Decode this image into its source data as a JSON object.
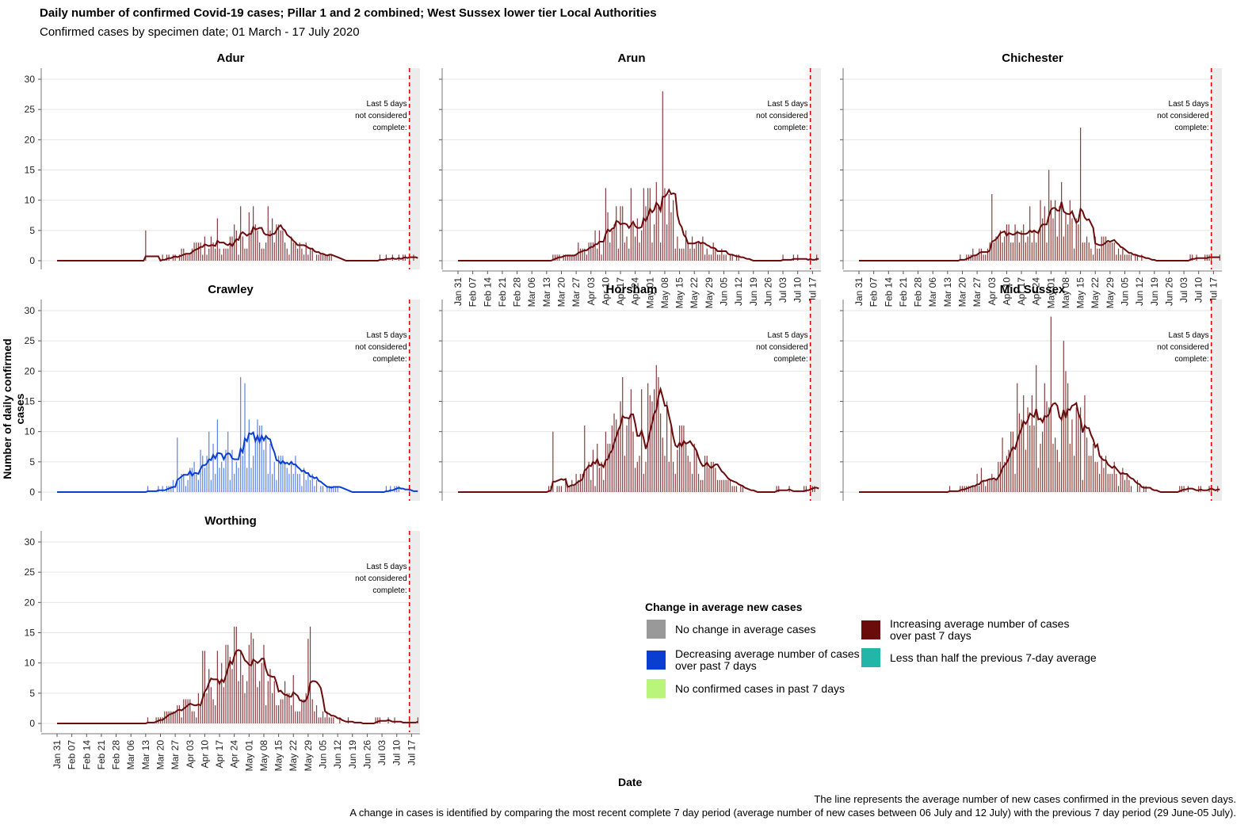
{
  "title": "Daily number of confirmed Covid-19 cases; Pillar 1 and 2 combined; West Sussex lower tier Local Authorities",
  "subtitle": "Confirmed cases by specimen date; 01 March - 17 July 2020",
  "ylabel": "Number of daily confirmed cases",
  "xlabel": "Date",
  "footnote_line1": "The line represents the average number of new cases confirmed in the previous seven days.",
  "footnote_line2": "A change in cases is identified by comparing the most recent complete 7 day period (average number of new cases between 06 July and 12 July) with the previous 7 day period (29 June-05 July).",
  "legend": {
    "title": "Change in average new cases",
    "items": [
      {
        "label": "No change in average cases",
        "color": "#999999"
      },
      {
        "label": "Decreasing average number of cases over past 7 days",
        "color": "#0a3ed1"
      },
      {
        "label": "No confirmed cases in past 7 days",
        "color": "#b8f57a"
      },
      {
        "label": "Increasing average number of cases over past 7 days",
        "color": "#6b0b0b"
      },
      {
        "label": "Less than half the previous 7-day average",
        "color": "#22b5a8"
      }
    ]
  },
  "chart_data": {
    "type": "bar",
    "ylim": [
      0,
      30
    ],
    "yticks": [
      0,
      5,
      10,
      15,
      20,
      25,
      30
    ],
    "xticks": [
      "Jan 31",
      "Feb 07",
      "Feb 14",
      "Feb 21",
      "Feb 28",
      "Mar 06",
      "Mar 13",
      "Mar 20",
      "Mar 27",
      "Apr 03",
      "Apr 10",
      "Apr 17",
      "Apr 24",
      "May 01",
      "May 08",
      "May 15",
      "May 22",
      "May 29",
      "Jun 05",
      "Jun 12",
      "Jun 19",
      "Jun 26",
      "Jul 03",
      "Jul 10",
      "Jul 17"
    ],
    "incomplete_note": "Last 5 days|not considered|complete:",
    "panels": [
      {
        "name": "Adur",
        "status_color": "#6b0b0b",
        "peak": 5,
        "spikes": [
          [
            -14,
            7
          ],
          [
            3,
            9
          ],
          [
            10,
            9
          ],
          [
            -48,
            5
          ],
          [
            -6,
            6
          ]
        ]
      },
      {
        "name": "Arun",
        "status_color": "#6b0b0b",
        "peak": 8,
        "spikes": [
          [
            7,
            28
          ],
          [
            -20,
            12
          ],
          [
            -8,
            12
          ],
          [
            12,
            10
          ],
          [
            -2,
            12
          ]
        ]
      },
      {
        "name": "Chichester",
        "status_color": "#6b0b0b",
        "peak": 6.5,
        "spikes": [
          [
            0,
            15
          ],
          [
            6,
            13
          ],
          [
            15,
            22
          ],
          [
            -27,
            11
          ],
          [
            -4,
            10
          ]
        ]
      },
      {
        "name": "Crawley",
        "status_color": "#0a3ed1",
        "peak": 8,
        "spikes": [
          [
            -3,
            19
          ],
          [
            -1,
            18
          ],
          [
            -14,
            12
          ],
          [
            -18,
            10
          ],
          [
            -33,
            9
          ]
        ]
      },
      {
        "name": "Horsham",
        "status_color": "#6b0b0b",
        "peak": 11.5,
        "spikes": [
          [
            4,
            21
          ],
          [
            -12,
            19
          ],
          [
            -3,
            17
          ],
          [
            -45,
            10
          ],
          [
            -30,
            11
          ]
        ]
      },
      {
        "name": "Mid Sussex",
        "status_color": "#6b0b0b",
        "peak": 12.5,
        "spikes": [
          [
            1,
            29
          ],
          [
            7,
            25
          ],
          [
            -15,
            18
          ],
          [
            17,
            16
          ],
          [
            -2,
            18
          ]
        ]
      },
      {
        "name": "Worthing",
        "status_color": "#6b0b0b",
        "peak": 10,
        "spikes": [
          [
            -21,
            12
          ],
          [
            -20,
            12
          ],
          [
            -9,
            13
          ],
          [
            30,
            16
          ],
          [
            29,
            14
          ]
        ]
      }
    ]
  }
}
